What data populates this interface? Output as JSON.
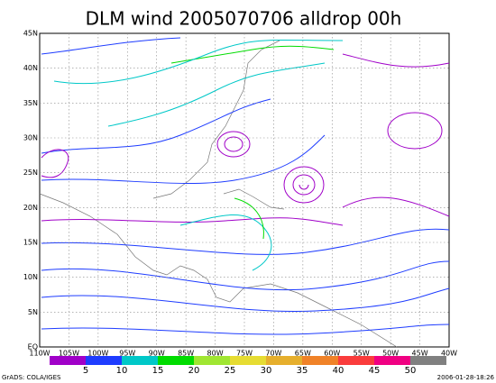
{
  "header": {
    "title": "DLM wind 2005070706 alldrop 00h"
  },
  "map": {
    "lon_labels": [
      "110W",
      "105W",
      "100W",
      "95W",
      "90W",
      "85W",
      "80W",
      "75W",
      "70W",
      "65W",
      "60W",
      "55W",
      "50W",
      "45W",
      "40W"
    ],
    "lat_labels": [
      "EQ",
      "5N",
      "10N",
      "15N",
      "20N",
      "25N",
      "30N",
      "35N",
      "40N",
      "45N"
    ]
  },
  "colorbar": {
    "levels": [
      5,
      10,
      15,
      20,
      25,
      30,
      35,
      40,
      45,
      50
    ],
    "colors": [
      "#a000c8",
      "#1e3cff",
      "#00c8c8",
      "#00dc00",
      "#a0e632",
      "#e6dc32",
      "#e6af2d",
      "#f08228",
      "#fa3c3c",
      "#f00082",
      "#808080"
    ]
  },
  "footer": {
    "left": "GrADS: COLA/IGES",
    "right": "2006-01-28-18:26"
  }
}
